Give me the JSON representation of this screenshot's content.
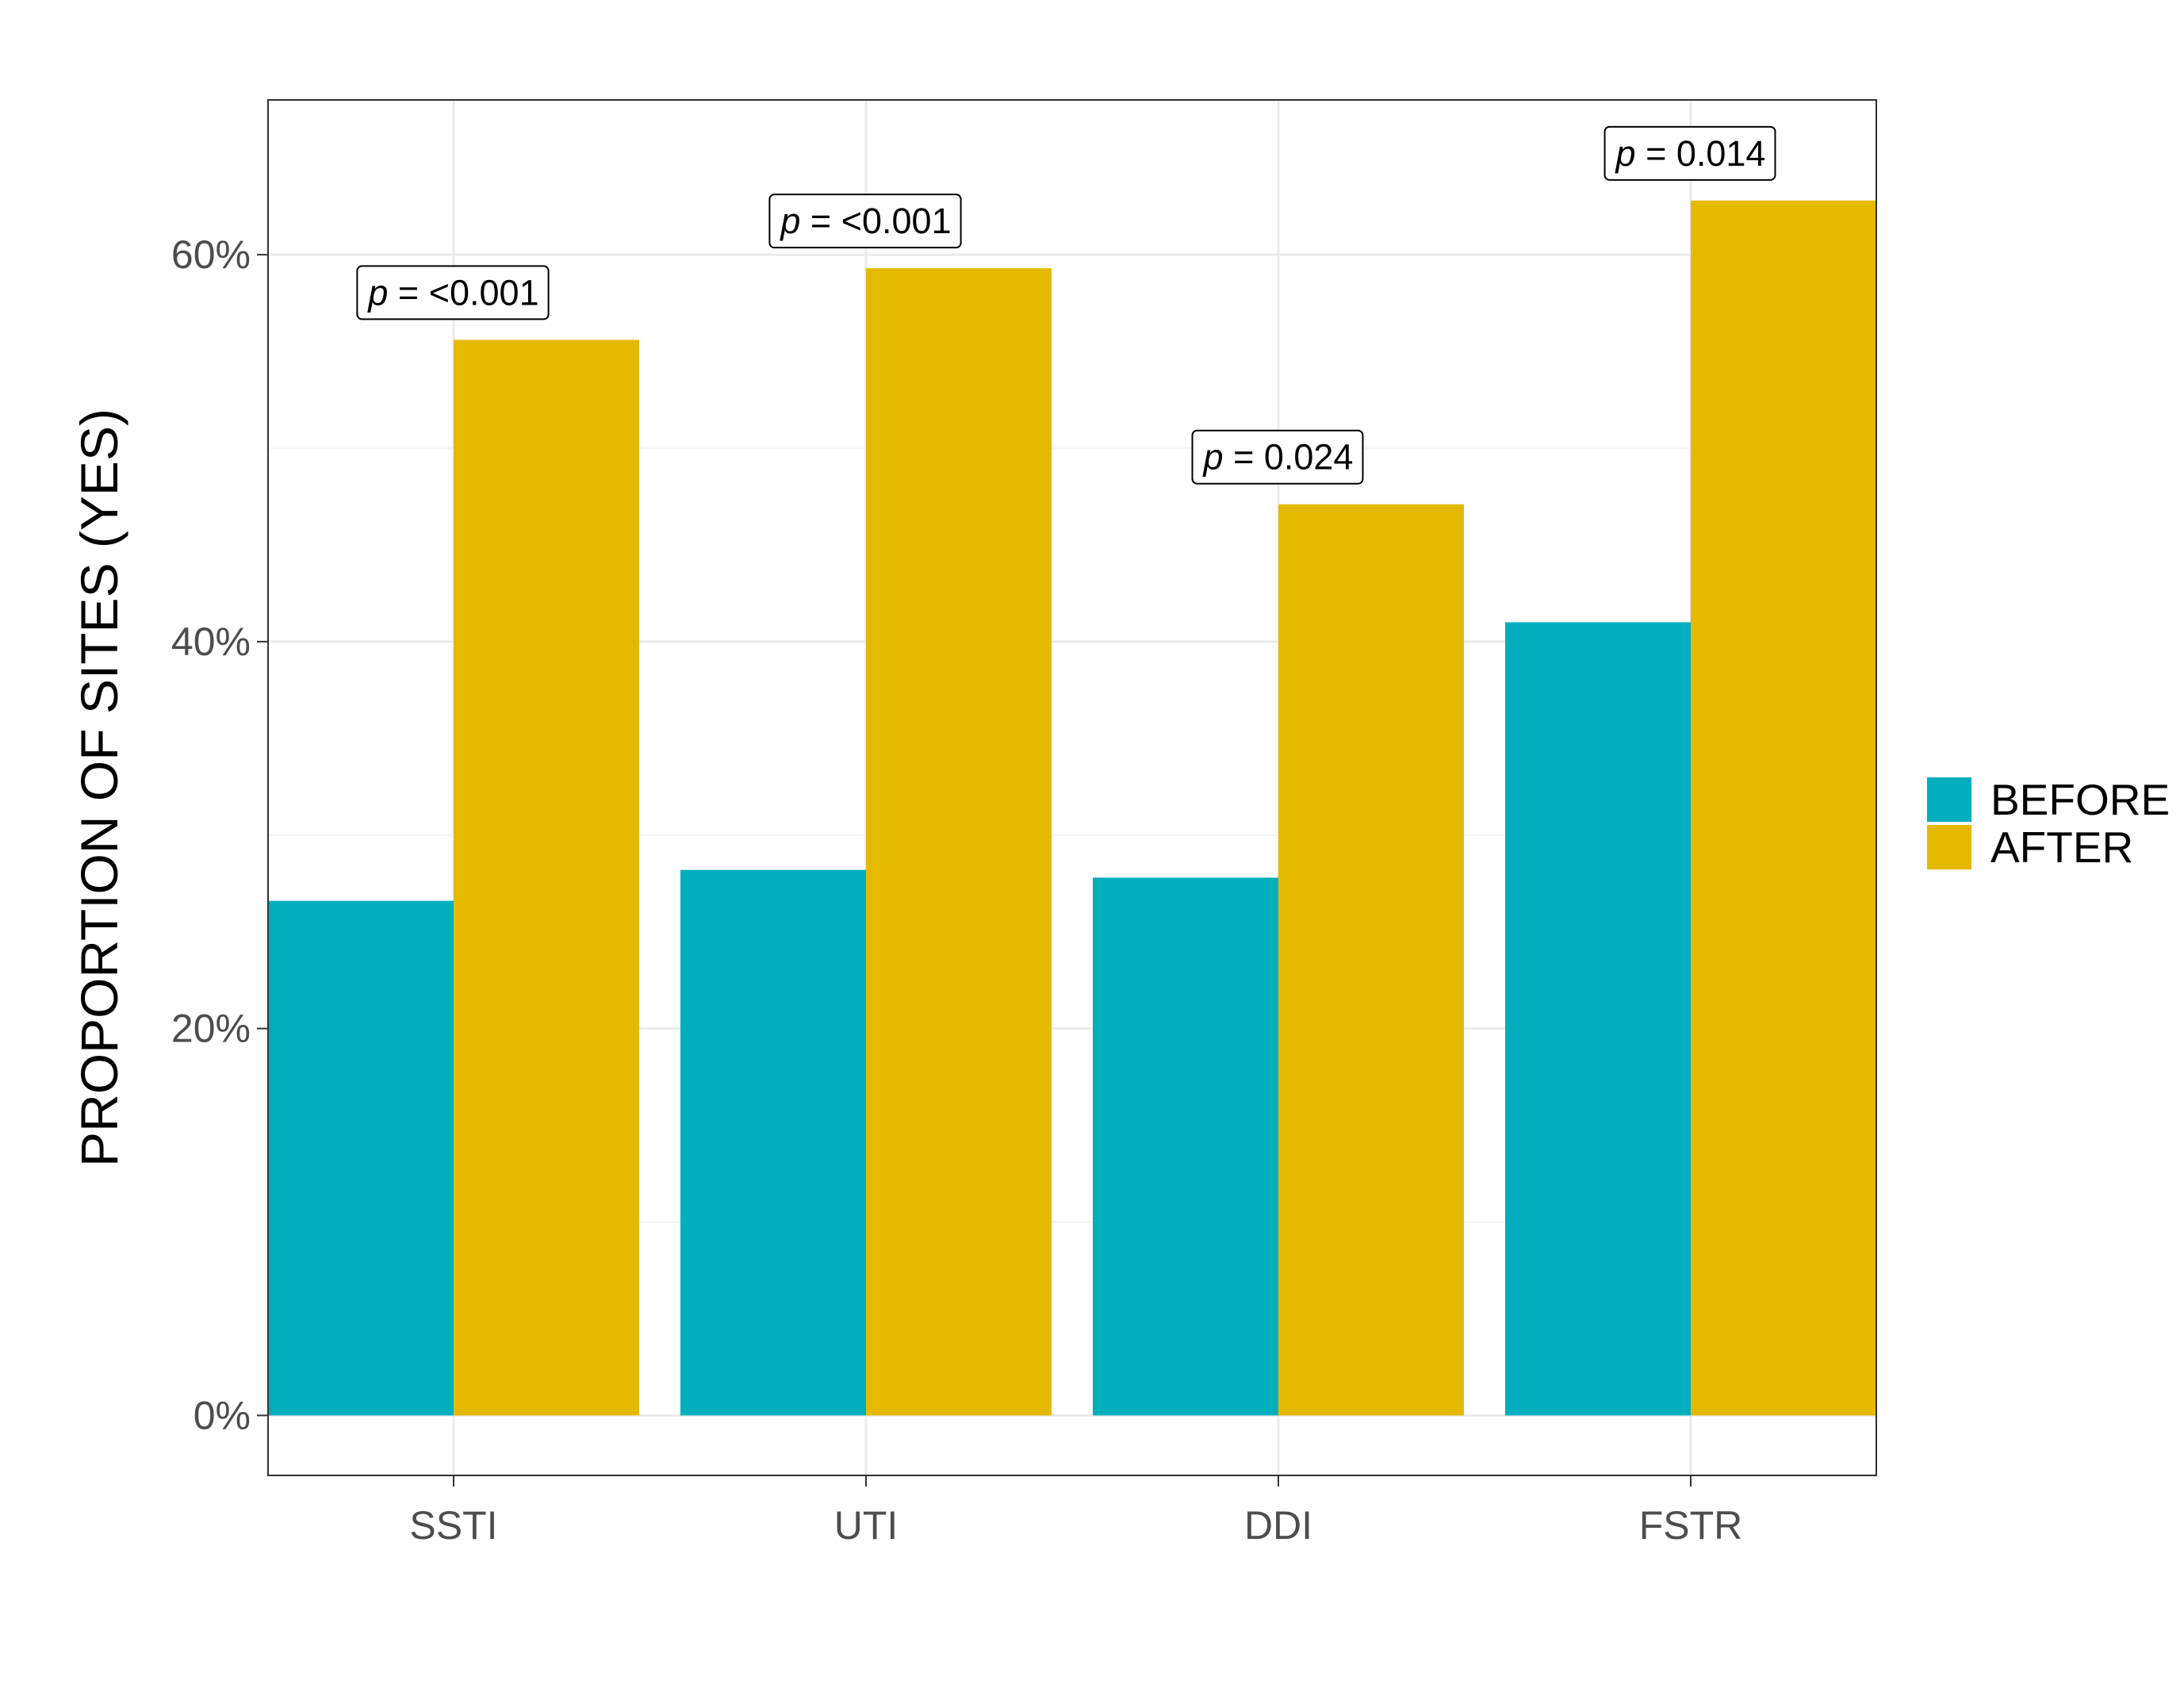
{
  "chart_data": {
    "type": "bar",
    "title": "",
    "xlabel": "",
    "ylabel": "PROPORTION OF SITES (YES)",
    "categories": [
      "SSTI",
      "UTI",
      "DDI",
      "FSTR"
    ],
    "series": [
      {
        "name": "BEFORE",
        "color": "#00AEBD",
        "values": [
          26.6,
          28.2,
          27.8,
          41.0
        ]
      },
      {
        "name": "AFTER",
        "color": "#E5B900",
        "values": [
          55.6,
          59.3,
          47.1,
          62.8
        ]
      }
    ],
    "annotations": [
      {
        "category": "SSTI",
        "prefix": "p",
        "text": " = <0.001"
      },
      {
        "category": "UTI",
        "prefix": "p",
        "text": " = <0.001"
      },
      {
        "category": "DDI",
        "prefix": "p",
        "text": " = 0.024"
      },
      {
        "category": "FSTR",
        "prefix": "p",
        "text": " = 0.014"
      }
    ],
    "yticks": [
      0,
      20,
      40,
      60
    ],
    "ytick_labels": [
      "0%",
      "20%",
      "40%",
      "60%"
    ],
    "ylim": [
      -3.1,
      68.0
    ],
    "grid": true,
    "legend_position": "right"
  }
}
